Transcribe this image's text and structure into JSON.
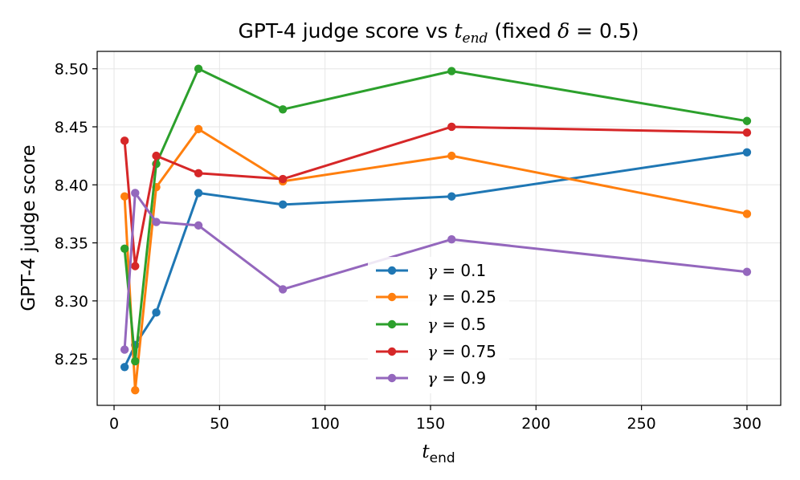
{
  "chart_data": {
    "type": "line",
    "title": "GPT-4 judge score vs",
    "title_var": "t",
    "title_var_sub": "end",
    "title_suffix_prefix": "(fixed",
    "title_suffix_var": "δ",
    "title_suffix_value": "= 0.5)",
    "xlabel": "t",
    "xlabel_sub": "end",
    "ylabel": "GPT-4 judge score",
    "xlim": [
      -8,
      316
    ],
    "ylim": [
      8.21,
      8.515
    ],
    "x_ticks": [
      0,
      50,
      100,
      150,
      200,
      250,
      300
    ],
    "x_tick_labels": [
      "0",
      "50",
      "100",
      "150",
      "200",
      "250",
      "300"
    ],
    "y_ticks": [
      8.25,
      8.3,
      8.35,
      8.4,
      8.45,
      8.5
    ],
    "y_tick_labels": [
      "8.25",
      "8.30",
      "8.35",
      "8.40",
      "8.45",
      "8.50"
    ],
    "grid": true,
    "legend_position": "lower-center",
    "x": [
      5,
      10,
      20,
      40,
      80,
      160,
      300
    ],
    "series": [
      {
        "name": "γ = 0.1",
        "gamma_symbol": "γ",
        "gamma_value": "= 0.1",
        "color": "#1f77b4",
        "values": [
          8.243,
          8.262,
          8.29,
          8.393,
          8.383,
          8.39,
          8.428
        ]
      },
      {
        "name": "γ = 0.25",
        "gamma_symbol": "γ",
        "gamma_value": "= 0.25",
        "color": "#ff7f0e",
        "values": [
          8.39,
          8.223,
          8.398,
          8.448,
          8.403,
          8.425,
          8.375
        ]
      },
      {
        "name": "γ = 0.5",
        "gamma_symbol": "γ",
        "gamma_value": "= 0.5",
        "color": "#2ca02c",
        "values": [
          8.345,
          8.248,
          8.418,
          8.5,
          8.465,
          8.498,
          8.455
        ]
      },
      {
        "name": "γ = 0.75",
        "gamma_symbol": "γ",
        "gamma_value": "= 0.75",
        "color": "#d62728",
        "values": [
          8.438,
          8.33,
          8.425,
          8.41,
          8.405,
          8.45,
          8.445
        ]
      },
      {
        "name": "γ = 0.9",
        "gamma_symbol": "γ",
        "gamma_value": "= 0.9",
        "color": "#9467bd",
        "values": [
          8.258,
          8.393,
          8.368,
          8.365,
          8.31,
          8.353,
          8.325
        ]
      }
    ]
  }
}
